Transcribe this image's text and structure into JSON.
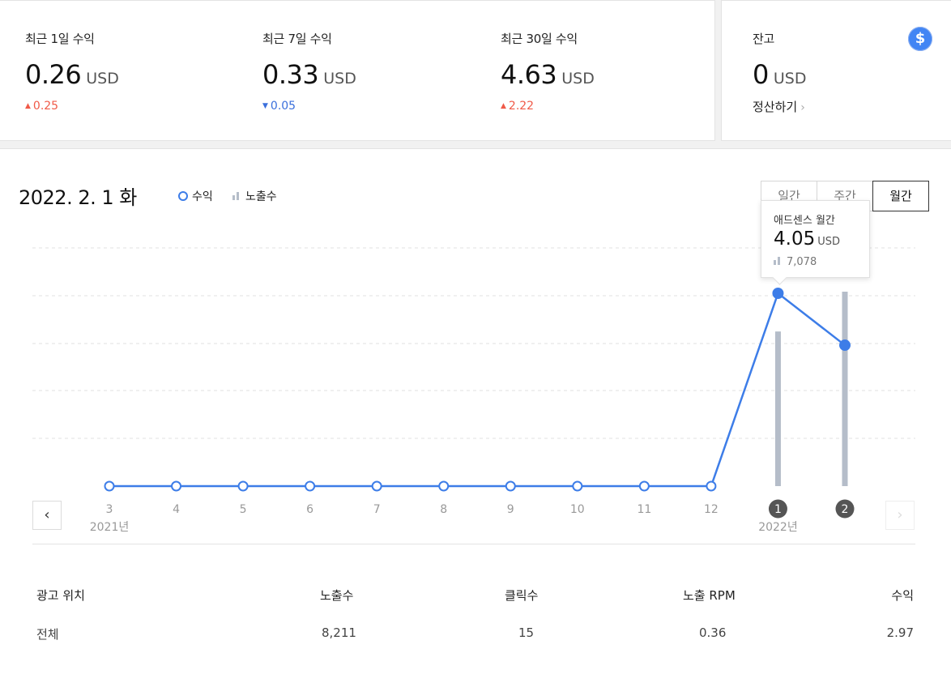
{
  "stats": [
    {
      "label": "최근 1일 수익",
      "value": "0.26",
      "unit": "USD",
      "change": "0.25",
      "direction": "up"
    },
    {
      "label": "최근 7일 수익",
      "value": "0.33",
      "unit": "USD",
      "change": "0.05",
      "direction": "down"
    },
    {
      "label": "최근 30일 수익",
      "value": "4.63",
      "unit": "USD",
      "change": "2.22",
      "direction": "up"
    }
  ],
  "balance": {
    "label": "잔고",
    "value": "0",
    "unit": "USD",
    "settle_label": "정산하기",
    "icon": "dollar-icon"
  },
  "chart_header": {
    "date": "2022. 2. 1 화",
    "legend_revenue": "수익",
    "legend_impressions": "노출수",
    "tabs": [
      "일간",
      "주간",
      "월간"
    ],
    "active_tab": "월간"
  },
  "tooltip": {
    "title": "애드센스 월간",
    "value": "4.05",
    "unit": "USD",
    "impressions": "7,078"
  },
  "chart_data": {
    "type": "line",
    "x": [
      "3",
      "4",
      "5",
      "6",
      "7",
      "8",
      "9",
      "10",
      "11",
      "12",
      "1",
      "2"
    ],
    "year_labels": [
      {
        "at": "3",
        "label": "2021년"
      },
      {
        "at": "1",
        "label": "2022년"
      }
    ],
    "highlighted_x": [
      "1",
      "2"
    ],
    "series": [
      {
        "name": "수익",
        "kind": "line",
        "color": "#3d7de8",
        "values": [
          0,
          0,
          0,
          0,
          0,
          0,
          0,
          0,
          0,
          0,
          4.05,
          2.96
        ]
      },
      {
        "name": "노출수",
        "kind": "bar",
        "color": "#b5bdc9",
        "values": [
          0,
          0,
          0,
          0,
          0,
          0,
          0,
          0,
          0,
          0,
          7078,
          8900
        ]
      }
    ],
    "grid": true
  },
  "table": {
    "headers": [
      "광고 위치",
      "노출수",
      "클릭수",
      "노출 RPM",
      "수익"
    ],
    "rows": [
      [
        "전체",
        "8,211",
        "15",
        "0.36",
        "2.97"
      ]
    ]
  },
  "colors": {
    "accent": "#3d7de8",
    "up": "#f05a48",
    "down": "#3a6fdc",
    "bars": "#b5bdc9"
  }
}
